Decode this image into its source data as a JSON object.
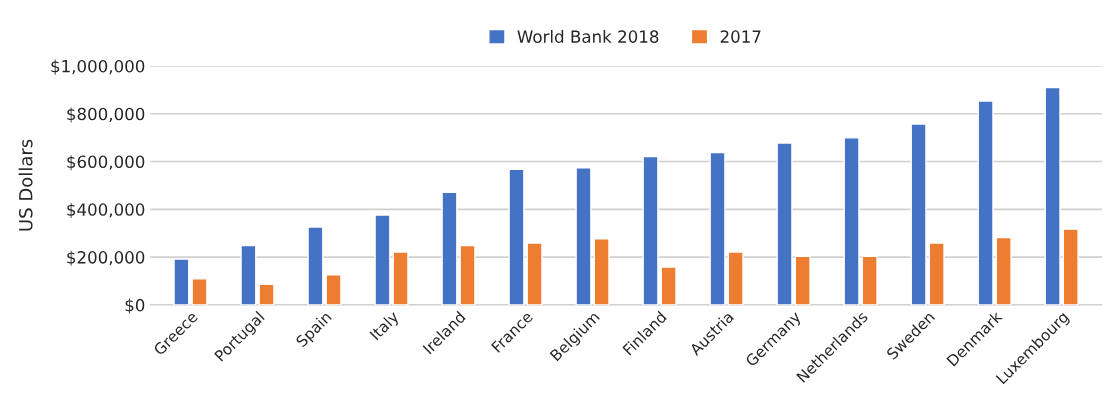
{
  "chart_data": {
    "type": "bar",
    "ylabel": "US Dollars",
    "categories": [
      "Greece",
      "Portugal",
      "Spain",
      "Italy",
      "Ireland",
      "France",
      "Belgium",
      "Finland",
      "Austria",
      "Germany",
      "Netherlands",
      "Sweden",
      "Denmark",
      "Luxembourg"
    ],
    "series": [
      {
        "name": "World Bank 2018",
        "color": "#4472c4",
        "values": [
          192000,
          248000,
          326000,
          376000,
          471000,
          567000,
          574000,
          621000,
          637000,
          677000,
          699000,
          757000,
          853000,
          909000
        ]
      },
      {
        "name": "2017",
        "color": "#ed7d31",
        "values": [
          109000,
          86000,
          126000,
          221000,
          248000,
          259000,
          277000,
          158000,
          221000,
          203000,
          203000,
          259000,
          282000,
          317000
        ]
      }
    ],
    "ylim": [
      0,
      1000000
    ],
    "yticks": [
      {
        "value": 0,
        "label": "$0"
      },
      {
        "value": 200000,
        "label": "$200,000"
      },
      {
        "value": 400000,
        "label": "$400,000"
      },
      {
        "value": 600000,
        "label": "$600,000"
      },
      {
        "value": 800000,
        "label": "$800,000"
      },
      {
        "value": 1000000,
        "label": "$1,000,000"
      }
    ],
    "grid": "y",
    "legend": "top"
  }
}
